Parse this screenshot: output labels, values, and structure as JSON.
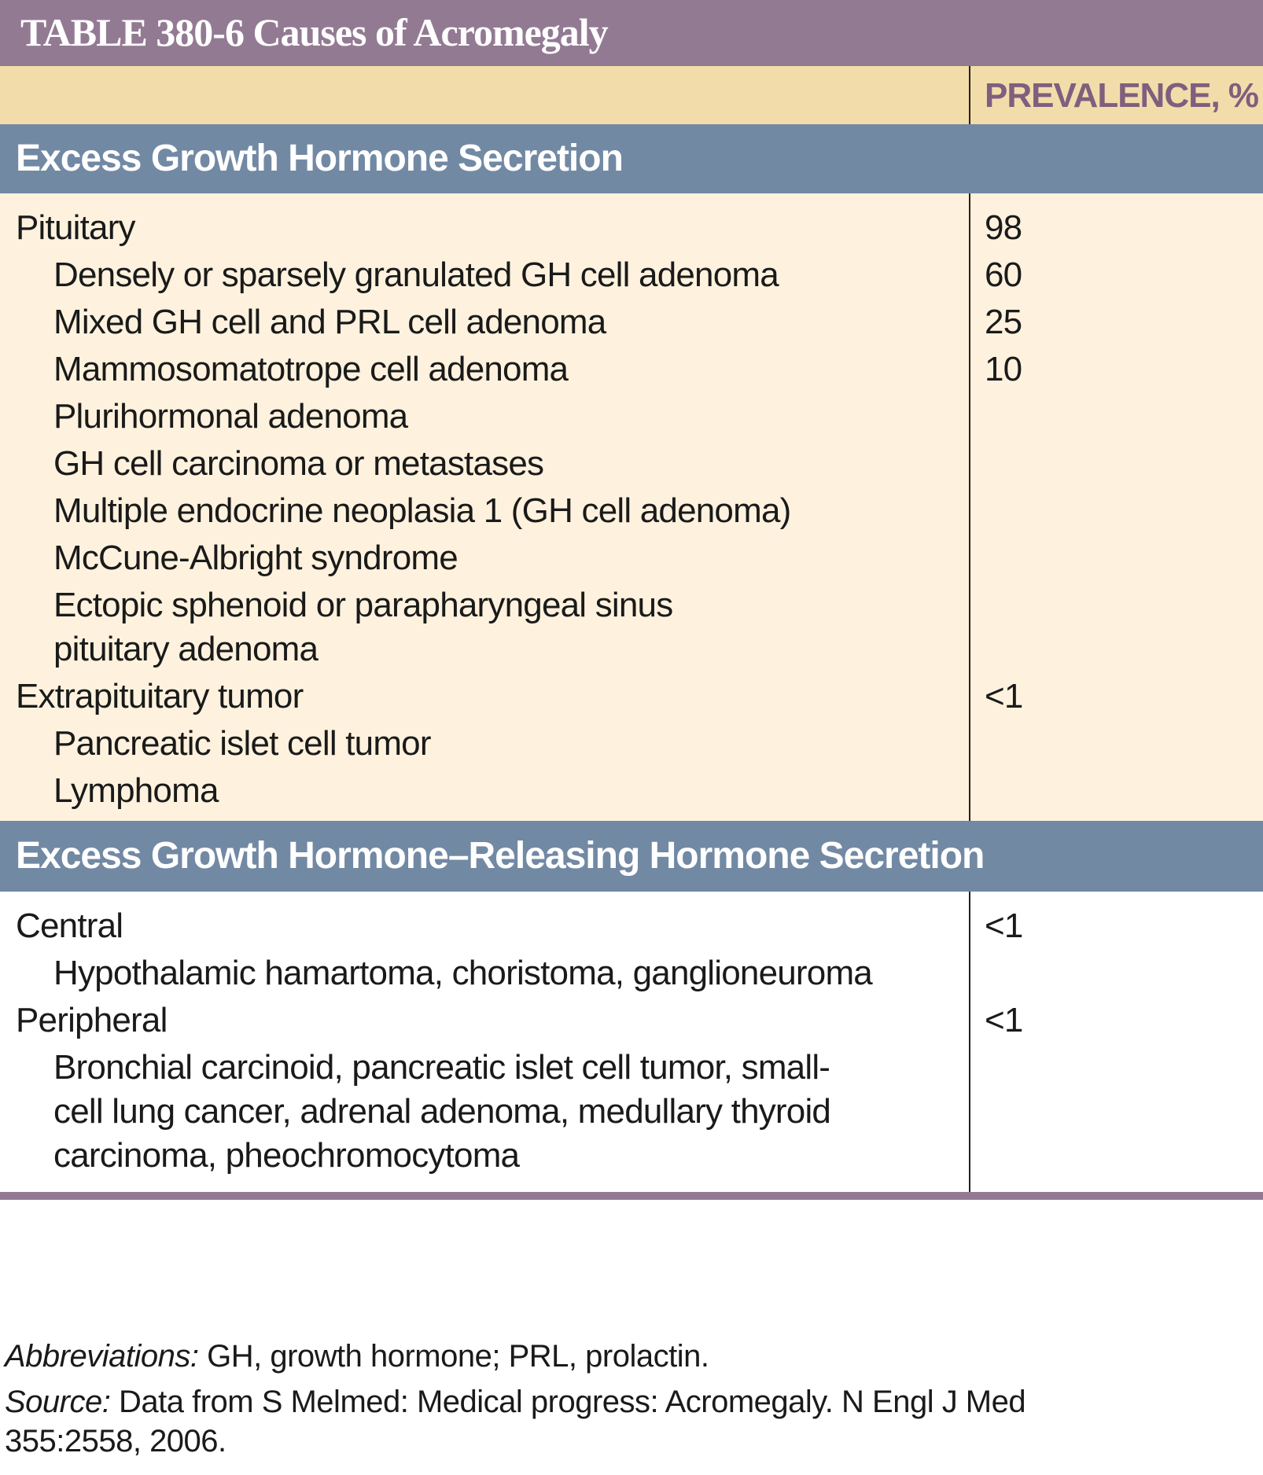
{
  "table": {
    "title": "TABLE 380-6  Causes of Acromegaly",
    "column_header_right": "PREVALENCE, %",
    "sections": [
      {
        "heading": "Excess Growth Hormone Secretion",
        "rows": [
          {
            "label": "Pituitary",
            "value": "98",
            "indent": 0
          },
          {
            "label": "Densely or sparsely granulated GH cell adenoma",
            "value": "60",
            "indent": 1
          },
          {
            "label": "Mixed GH cell and PRL cell adenoma",
            "value": "25",
            "indent": 1
          },
          {
            "label": "Mammosomatotrope cell adenoma",
            "value": "10",
            "indent": 1
          },
          {
            "label": "Plurihormonal adenoma",
            "value": "",
            "indent": 1
          },
          {
            "label": "GH cell carcinoma or metastases",
            "value": "",
            "indent": 1
          },
          {
            "label": "Multiple endocrine neoplasia 1 (GH cell adenoma)",
            "value": "",
            "indent": 1
          },
          {
            "label": "McCune-Albright syndrome",
            "value": "",
            "indent": 1
          },
          {
            "label": "Ectopic sphenoid or parapharyngeal sinus pituitary adenoma",
            "value": "",
            "indent": 1
          },
          {
            "label": "Extrapituitary tumor",
            "value": "<1",
            "indent": 0
          },
          {
            "label": "Pancreatic islet cell tumor",
            "value": "",
            "indent": 1
          },
          {
            "label": "Lymphoma",
            "value": "",
            "indent": 1
          }
        ]
      },
      {
        "heading": "Excess Growth Hormone–Releasing Hormone Secretion",
        "rows": [
          {
            "label": "Central",
            "value": "<1",
            "indent": 0
          },
          {
            "label": "Hypothalamic hamartoma, choristoma, ganglioneuroma",
            "value": "",
            "indent": 1
          },
          {
            "label": "Peripheral",
            "value": "<1",
            "indent": 0
          },
          {
            "label": "Bronchial carcinoid, pancreatic islet cell tumor, small-cell lung cancer, adrenal adenoma, medullary thyroid carcinoma, pheochromocytoma",
            "value": "",
            "indent": 1
          }
        ]
      }
    ]
  },
  "footnotes": {
    "abbrev_label": "Abbreviations:",
    "abbrev_text": " GH, growth hormone; PRL, prolactin.",
    "source_label": "Source:",
    "source_text": " Data from S Melmed: Medical progress: Acromegaly. N Engl J Med 355:2558, 2006."
  }
}
